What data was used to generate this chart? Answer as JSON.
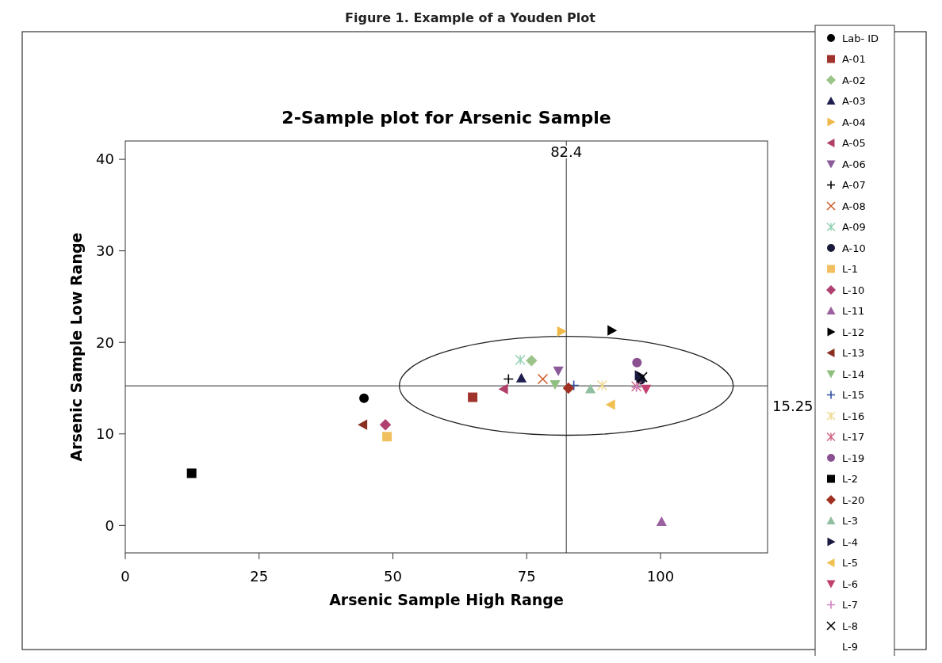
{
  "chart_data": {
    "type": "scatter",
    "title": "2-Sample plot for Arsenic Sample",
    "xlabel": "Arsenic Sample High Range",
    "ylabel": "Arsenic Sample Low Range",
    "annotations": [
      "Figure 1. Example of a Youden Plot"
    ],
    "xlim": [
      0,
      120
    ],
    "xticks": [
      0,
      25,
      50,
      75,
      100
    ],
    "ylim": [
      -3,
      42
    ],
    "yticks": [
      0,
      10,
      20,
      30,
      40
    ],
    "grid": false,
    "legend": "right",
    "ref_lines": [
      {
        "axis": "x",
        "value": 82.4,
        "label": "82.4"
      },
      {
        "axis": "y",
        "value": 15.25,
        "label": "15.25"
      }
    ],
    "series": [
      {
        "name": "Lab- ID",
        "color": "#000000",
        "marker": "circle",
        "x": [
          44.6
        ],
        "values": [
          13.9
        ]
      },
      {
        "name": "A-01",
        "color": "#a0342d",
        "marker": "square",
        "x": [
          64.9
        ],
        "values": [
          14.0
        ]
      },
      {
        "name": "A-02",
        "color": "#9cc48a",
        "marker": "diamond",
        "x": [
          75.9
        ],
        "values": [
          18.0
        ]
      },
      {
        "name": "A-03",
        "color": "#1f1f4f",
        "marker": "triangle",
        "x": [
          74.0
        ],
        "values": [
          16.1
        ]
      },
      {
        "name": "A-04",
        "color": "#f0b848",
        "marker": "triangle-right",
        "x": [
          81.5
        ],
        "values": [
          21.2
        ]
      },
      {
        "name": "A-05",
        "color": "#b0406a",
        "marker": "triangle-left",
        "x": [
          70.7
        ],
        "values": [
          14.9
        ]
      },
      {
        "name": "A-06",
        "color": "#8a5a9a",
        "marker": "triangle-down",
        "x": [
          80.9
        ],
        "values": [
          16.9
        ]
      },
      {
        "name": "A-07",
        "color": "#000000",
        "marker": "plus",
        "x": [
          71.6
        ],
        "values": [
          16.0
        ]
      },
      {
        "name": "A-08",
        "color": "#d06030",
        "marker": "x",
        "x": [
          78.0
        ],
        "values": [
          16.0
        ]
      },
      {
        "name": "A-09",
        "color": "#90d0b0",
        "marker": "cross",
        "x": [
          73.8
        ],
        "values": [
          18.1
        ]
      },
      {
        "name": "A-10",
        "color": "#1a1a3a",
        "marker": "circle",
        "x": [
          96.3
        ],
        "values": [
          15.9
        ]
      },
      {
        "name": "L-1",
        "color": "#f0c060",
        "marker": "square",
        "x": [
          48.9
        ],
        "values": [
          9.7
        ]
      },
      {
        "name": "L-10",
        "color": "#b04070",
        "marker": "diamond",
        "x": [
          48.6
        ],
        "values": [
          11.0
        ]
      },
      {
        "name": "L-11",
        "color": "#9a60a0",
        "marker": "triangle",
        "x": [
          100.2
        ],
        "values": [
          0.4
        ]
      },
      {
        "name": "L-12",
        "color": "#000000",
        "marker": "triangle-right",
        "x": [
          90.9
        ],
        "values": [
          21.3
        ]
      },
      {
        "name": "L-13",
        "color": "#8a3020",
        "marker": "triangle-left",
        "x": [
          44.4
        ],
        "values": [
          11.0
        ]
      },
      {
        "name": "L-14",
        "color": "#90c080",
        "marker": "triangle-down",
        "x": [
          80.3
        ],
        "values": [
          15.4
        ]
      },
      {
        "name": "L-15",
        "color": "#3050a0",
        "marker": "plus",
        "x": [
          83.8
        ],
        "values": [
          15.3
        ]
      },
      {
        "name": "L-16",
        "color": "#f0d890",
        "marker": "cross",
        "x": [
          89.1
        ],
        "values": [
          15.3
        ]
      },
      {
        "name": "L-17",
        "color": "#d06080",
        "marker": "cross",
        "x": [
          95.5
        ],
        "values": [
          15.2
        ]
      },
      {
        "name": "L-19",
        "color": "#8a5090",
        "marker": "circle",
        "x": [
          95.6
        ],
        "values": [
          17.8
        ]
      },
      {
        "name": "L-2",
        "color": "#000000",
        "marker": "square",
        "x": [
          12.4
        ],
        "values": [
          5.7
        ]
      },
      {
        "name": "L-20",
        "color": "#a03020",
        "marker": "diamond",
        "x": [
          82.8
        ],
        "values": [
          15.0
        ]
      },
      {
        "name": "L-3",
        "color": "#90c0a0",
        "marker": "triangle",
        "x": [
          86.9
        ],
        "values": [
          14.9
        ]
      },
      {
        "name": "L-4",
        "color": "#1a1a40",
        "marker": "triangle-right",
        "x": [
          96.0
        ],
        "values": [
          16.4
        ]
      },
      {
        "name": "L-5",
        "color": "#f0c050",
        "marker": "triangle-left",
        "x": [
          90.7
        ],
        "values": [
          13.2
        ]
      },
      {
        "name": "L-6",
        "color": "#c04070",
        "marker": "triangle-down",
        "x": [
          97.3
        ],
        "values": [
          14.9
        ]
      },
      {
        "name": "L-7",
        "color": "#d080c0",
        "marker": "plus",
        "x": [
          95.5
        ],
        "values": [
          15.1
        ]
      },
      {
        "name": "L-8",
        "color": "#000000",
        "marker": "x",
        "x": [
          96.6
        ],
        "values": [
          16.2
        ]
      },
      {
        "name": "L-9",
        "marker": "none"
      }
    ]
  }
}
